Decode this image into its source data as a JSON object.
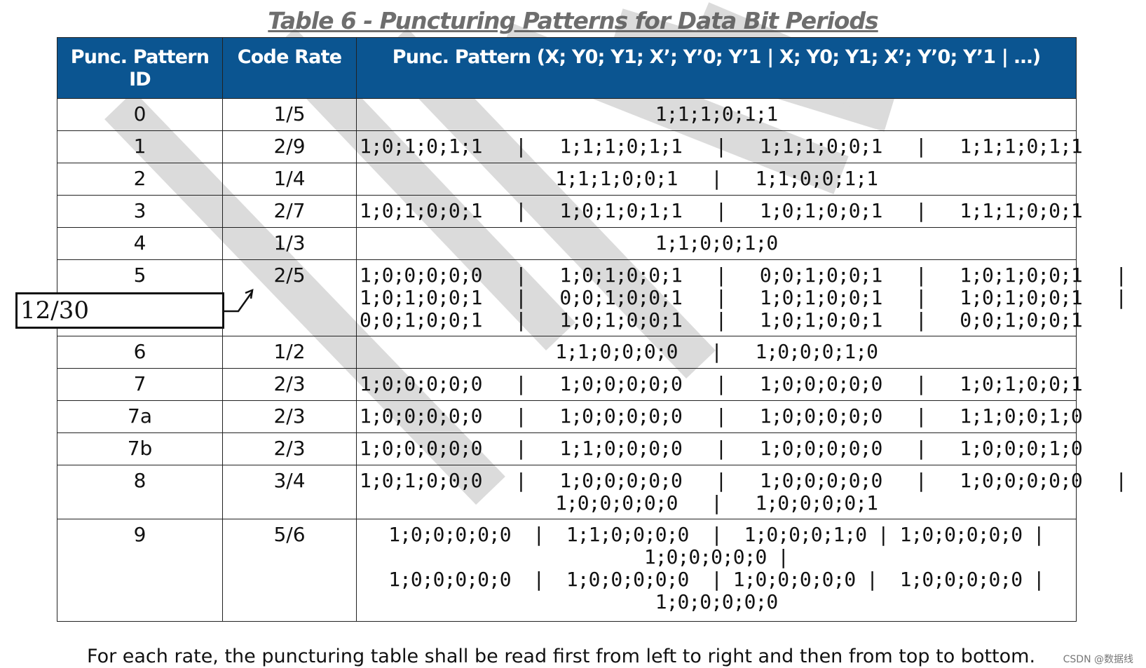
{
  "title": "Table 6 - Puncturing Patterns for Data Bit Periods",
  "headers": {
    "id": "Punc. Pattern ID",
    "rate": "Code Rate",
    "pattern": "Punc. Pattern (X; Y0; Y1; X’; Y’0; Y’1 | X; Y0; Y1; X’; Y’0; Y’1 | …)"
  },
  "rows": [
    {
      "id": "0",
      "rate": "1/5",
      "pattern": [
        "1;1;1;0;1;1"
      ]
    },
    {
      "id": "1",
      "rate": "2/9",
      "pattern": [
        "1;0;1;0;1;1   |   1;1;1;0;1;1   |   1;1;1;0;0;1   |   1;1;1;0;1;1"
      ]
    },
    {
      "id": "2",
      "rate": "1/4",
      "pattern": [
        "1;1;1;0;0;1   |   1;1;0;0;1;1"
      ]
    },
    {
      "id": "3",
      "rate": "2/7",
      "pattern": [
        "1;0;1;0;0;1   |   1;0;1;0;1;1   |   1;0;1;0;0;1   |   1;1;1;0;0;1"
      ]
    },
    {
      "id": "4",
      "rate": "1/3",
      "pattern": [
        "1;1;0;0;1;0"
      ]
    },
    {
      "id": "5",
      "rate": "2/5",
      "pattern": [
        "1;0;0;0;0;0   |   1;0;1;0;0;1   |   0;0;1;0;0;1   |   1;0;1;0;0;1   |",
        "1;0;1;0;0;1   |   0;0;1;0;0;1   |   1;0;1;0;0;1   |   1;0;1;0;0;1   |",
        "0;0;1;0;0;1   |   1;0;1;0;0;1   |   1;0;1;0;0;1   |   0;0;1;0;0;1"
      ]
    },
    {
      "id": "6",
      "rate": "1/2",
      "pattern": [
        "1;1;0;0;0;0   |   1;0;0;0;1;0"
      ]
    },
    {
      "id": "7",
      "rate": "2/3",
      "pattern": [
        "1;0;0;0;0;0   |   1;0;0;0;0;0   |   1;0;0;0;0;0   |   1;0;1;0;0;1"
      ]
    },
    {
      "id": "7a",
      "rate": "2/3",
      "pattern": [
        "1;0;0;0;0;0   |   1;0;0;0;0;0   |   1;0;0;0;0;0   |   1;1;0;0;1;0"
      ]
    },
    {
      "id": "7b",
      "rate": "2/3",
      "pattern": [
        "1;0;0;0;0;0   |   1;1;0;0;0;0   |   1;0;0;0;0;0   |   1;0;0;0;1;0"
      ]
    },
    {
      "id": "8",
      "rate": "3/4",
      "pattern": [
        "1;0;1;0;0;0   |   1;0;0;0;0;0   |   1;0;0;0;0;0   |   1;0;0;0;0;0   |",
        "1;0;0;0;0;0   |   1;0;0;0;0;1"
      ]
    },
    {
      "id": "9",
      "rate": "5/6",
      "pattern": [
        "1;0;0;0;0;0  |  1;1;0;0;0;0  |  1;0;0;0;1;0 | 1;0;0;0;0;0 |",
        "1;0;0;0;0;0 |",
        "1;0;0;0;0;0  |  1;0;0;0;0;0  | 1;0;0;0;0;0 |  1;0;0;0;0;0 |",
        "1;0;0;0;0;0"
      ]
    }
  ],
  "footnote": "For each rate, the puncturing table shall be read first from left to right and then from top to bottom.",
  "annotation": "12/30",
  "watermark_text": "CSDN @数据线",
  "colors": {
    "header_bg": "#0b5591",
    "header_text": "#ffffff",
    "watermark": "#d9d9d9"
  }
}
